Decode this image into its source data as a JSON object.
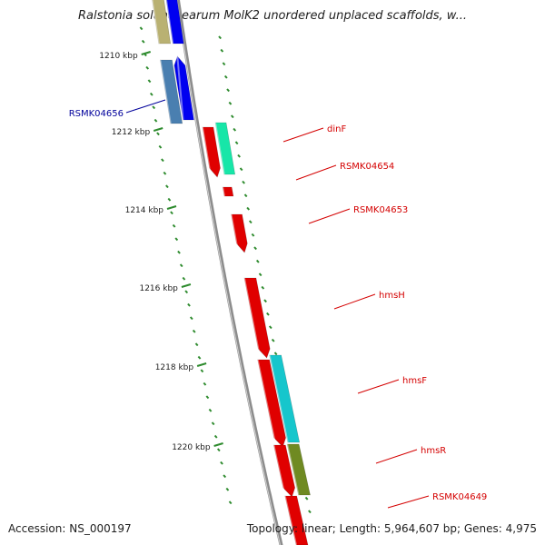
{
  "title": "Ralstonia solanacearum MolK2 unordered unplaced scaffolds, w...",
  "footer": {
    "accession": "Accession: NS_000197",
    "topology": "Topology: linear; Length: 5,964,607 bp; Genes: 4,975"
  },
  "colors": {
    "backbone": "#8c8c8c",
    "tick": "#2e8b2e",
    "label_blue": "#00009b",
    "label_red": "#d40000",
    "gene_red": "#e00000",
    "gene_blue": "#0000f0",
    "gene_steel": "#4a7fb0",
    "gene_khaki": "#b9b172",
    "gene_aqua": "#17e6a8",
    "gene_cyan": "#16c6cc",
    "gene_olive": "#6f8a22"
  },
  "ticks": [
    "1210 kbp",
    "1212 kbp",
    "1214 kbp",
    "1216 kbp",
    "1218 kbp",
    "1220 kbp"
  ],
  "genes": [
    {
      "name": "RSMK04656",
      "track": "left",
      "color": "blue"
    },
    {
      "name": "dinF",
      "track": "right",
      "color": "red"
    },
    {
      "name": "RSMK04654",
      "track": "right",
      "color": "red"
    },
    {
      "name": "RSMK04653",
      "track": "right",
      "color": "red"
    },
    {
      "name": "hmsH",
      "track": "right",
      "color": "red"
    },
    {
      "name": "hmsF",
      "track": "right",
      "color": "red"
    },
    {
      "name": "hmsR",
      "track": "right",
      "color": "red"
    },
    {
      "name": "RSMK04649",
      "track": "right",
      "color": "red"
    }
  ]
}
